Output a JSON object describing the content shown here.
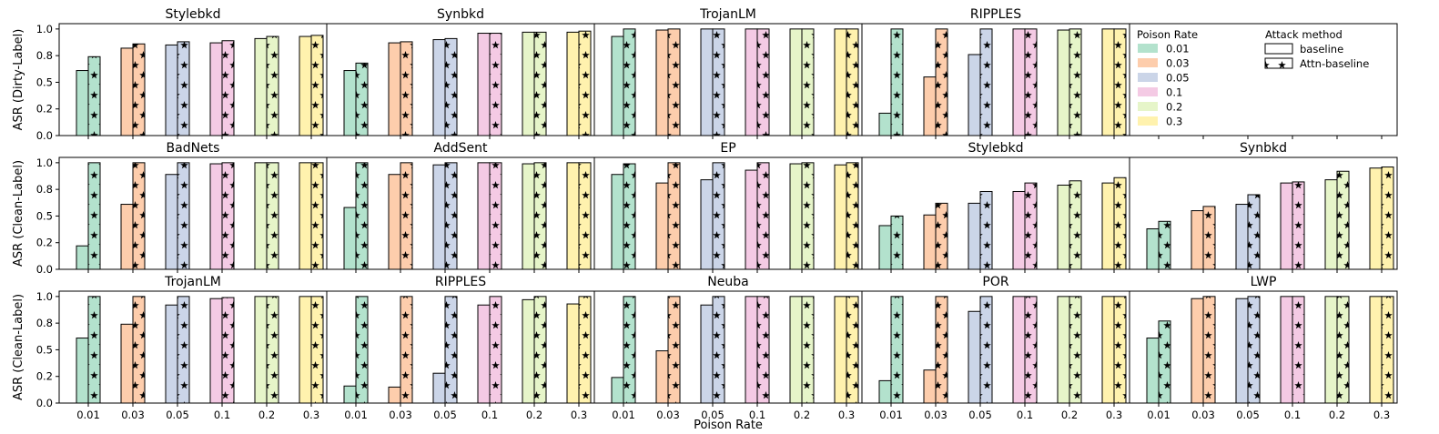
{
  "figure": {
    "xlabel": "Poison Rate",
    "row_ylabels": [
      "ASR (Dirty-Label)",
      "ASR (Clean-Label)",
      "ASR (Clean-Label)"
    ]
  },
  "legend": {
    "rate_title": "Poison Rate",
    "rates": [
      {
        "label": "0.01",
        "color": "#b3e2cd"
      },
      {
        "label": "0.03",
        "color": "#fdcdac"
      },
      {
        "label": "0.05",
        "color": "#cbd5e8"
      },
      {
        "label": "0.1",
        "color": "#f4cae4"
      },
      {
        "label": "0.2",
        "color": "#e6f5c9"
      },
      {
        "label": "0.3",
        "color": "#fff2ae"
      }
    ],
    "method_title": "Attack method",
    "methods": [
      {
        "label": "baseline",
        "pattern": "plain"
      },
      {
        "label": "Attn-baseline",
        "pattern": "stars"
      }
    ]
  },
  "chart_data": {
    "type": "bar",
    "categories": [
      "0.01",
      "0.03",
      "0.05",
      "0.1",
      "0.2",
      "0.3"
    ],
    "ylim": [
      0,
      1.05
    ],
    "yticks": [
      "0.0",
      "0.2",
      "0.5",
      "0.8",
      "1.0"
    ],
    "ytick_values": [
      0.0,
      0.25,
      0.5,
      0.75,
      1.0
    ],
    "series_names": [
      "baseline",
      "Attn-baseline"
    ],
    "panels": [
      {
        "title": "Stylebkd",
        "row": 0,
        "col": 0,
        "baseline": [
          0.61,
          0.82,
          0.85,
          0.87,
          0.91,
          0.93
        ],
        "attn": [
          0.74,
          0.86,
          0.88,
          0.89,
          0.93,
          0.94
        ]
      },
      {
        "title": "Synbkd",
        "row": 0,
        "col": 1,
        "baseline": [
          0.61,
          0.87,
          0.9,
          0.96,
          0.97,
          0.97
        ],
        "attn": [
          0.68,
          0.88,
          0.91,
          0.96,
          0.97,
          0.98
        ]
      },
      {
        "title": "TrojanLM",
        "row": 0,
        "col": 2,
        "baseline": [
          0.93,
          0.99,
          1.0,
          1.0,
          1.0,
          1.0
        ],
        "attn": [
          1.0,
          1.0,
          1.0,
          1.0,
          1.0,
          1.0
        ]
      },
      {
        "title": "RIPPLES",
        "row": 0,
        "col": 3,
        "baseline": [
          0.21,
          0.55,
          0.76,
          1.0,
          0.99,
          1.0
        ],
        "attn": [
          1.0,
          1.0,
          1.0,
          1.0,
          1.0,
          1.0
        ]
      },
      {
        "title": "BadNets",
        "row": 1,
        "col": 0,
        "baseline": [
          0.22,
          0.61,
          0.89,
          0.99,
          1.0,
          1.0
        ],
        "attn": [
          1.0,
          1.0,
          1.0,
          1.0,
          1.0,
          1.0
        ]
      },
      {
        "title": "AddSent",
        "row": 1,
        "col": 1,
        "baseline": [
          0.58,
          0.89,
          0.98,
          1.0,
          0.99,
          1.0
        ],
        "attn": [
          1.0,
          1.0,
          1.0,
          1.0,
          1.0,
          1.0
        ]
      },
      {
        "title": "EP",
        "row": 1,
        "col": 2,
        "baseline": [
          0.89,
          0.81,
          0.84,
          0.93,
          0.99,
          0.98
        ],
        "attn": [
          0.99,
          1.0,
          1.0,
          1.0,
          1.0,
          1.0
        ]
      },
      {
        "title": "Stylebkd",
        "row": 1,
        "col": 3,
        "baseline": [
          0.41,
          0.51,
          0.62,
          0.73,
          0.79,
          0.81
        ],
        "attn": [
          0.5,
          0.62,
          0.73,
          0.81,
          0.83,
          0.86
        ]
      },
      {
        "title": "Synbkd",
        "row": 1,
        "col": 4,
        "baseline": [
          0.38,
          0.55,
          0.61,
          0.81,
          0.84,
          0.95
        ],
        "attn": [
          0.45,
          0.59,
          0.7,
          0.82,
          0.92,
          0.96
        ]
      },
      {
        "title": "TrojanLM",
        "row": 2,
        "col": 0,
        "baseline": [
          0.61,
          0.74,
          0.92,
          0.98,
          1.0,
          1.0
        ],
        "attn": [
          1.0,
          1.0,
          1.0,
          0.99,
          1.0,
          1.0
        ]
      },
      {
        "title": "RIPPLES",
        "row": 2,
        "col": 1,
        "baseline": [
          0.16,
          0.15,
          0.28,
          0.92,
          0.97,
          0.93
        ],
        "attn": [
          1.0,
          1.0,
          1.0,
          1.0,
          1.0,
          1.0
        ]
      },
      {
        "title": "Neuba",
        "row": 2,
        "col": 2,
        "baseline": [
          0.24,
          0.49,
          0.92,
          1.0,
          1.0,
          1.0
        ],
        "attn": [
          1.0,
          1.0,
          1.0,
          1.0,
          1.0,
          1.0
        ]
      },
      {
        "title": "POR",
        "row": 2,
        "col": 3,
        "baseline": [
          0.21,
          0.31,
          0.86,
          1.0,
          1.0,
          1.0
        ],
        "attn": [
          1.0,
          1.0,
          1.0,
          1.0,
          1.0,
          1.0
        ]
      },
      {
        "title": "LWP",
        "row": 2,
        "col": 4,
        "baseline": [
          0.61,
          0.98,
          0.98,
          1.0,
          1.0,
          1.0
        ],
        "attn": [
          0.77,
          1.0,
          1.0,
          1.0,
          1.0,
          1.0
        ]
      }
    ]
  }
}
